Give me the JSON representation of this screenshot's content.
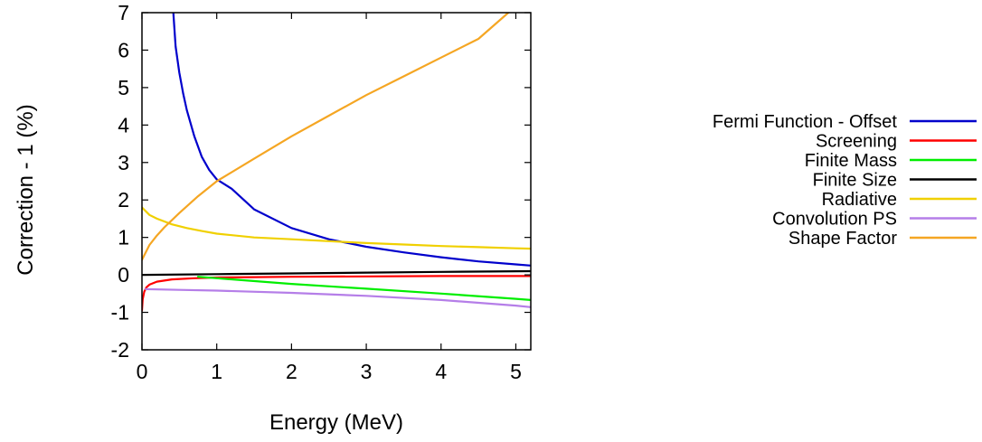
{
  "chart_data": {
    "type": "line",
    "title": "",
    "xlabel": "Energy (MeV)",
    "ylabel": "Correction - 1 (%)",
    "xlim": [
      0,
      5.2
    ],
    "ylim": [
      -2,
      7
    ],
    "xticks": [
      0,
      1,
      2,
      3,
      4,
      5
    ],
    "yticks": [
      -2,
      -1,
      0,
      1,
      2,
      3,
      4,
      5,
      6,
      7
    ],
    "grid": false,
    "legend_position": "right",
    "series": [
      {
        "name": "Fermi Function - Offset",
        "color": "#0000cc",
        "x": [
          0.42,
          0.45,
          0.5,
          0.55,
          0.6,
          0.7,
          0.8,
          0.9,
          1.0,
          1.2,
          1.5,
          2.0,
          2.5,
          3.0,
          3.5,
          4.0,
          4.5,
          5.0,
          5.2
        ],
        "y": [
          7.0,
          6.1,
          5.4,
          4.85,
          4.4,
          3.7,
          3.15,
          2.8,
          2.55,
          2.3,
          1.75,
          1.25,
          0.95,
          0.75,
          0.6,
          0.47,
          0.36,
          0.28,
          0.25
        ]
      },
      {
        "name": "Screening",
        "color": "#ff0000",
        "x": [
          0.0,
          0.01,
          0.03,
          0.06,
          0.1,
          0.2,
          0.4,
          0.7,
          1.0,
          1.5,
          2.0,
          3.0,
          4.0,
          5.0,
          5.2
        ],
        "y": [
          -0.95,
          -0.65,
          -0.45,
          -0.33,
          -0.26,
          -0.18,
          -0.12,
          -0.09,
          -0.07,
          -0.06,
          -0.05,
          -0.04,
          -0.03,
          -0.03,
          -0.03
        ]
      },
      {
        "name": "Finite Mass",
        "color": "#00ee00",
        "x": [
          0.75,
          1.0,
          2.0,
          3.0,
          4.0,
          5.0,
          5.2
        ],
        "y": [
          -0.05,
          -0.09,
          -0.24,
          -0.37,
          -0.5,
          -0.64,
          -0.67
        ]
      },
      {
        "name": "Finite Size",
        "color": "#000000",
        "x": [
          0.0,
          1.0,
          2.0,
          3.0,
          4.0,
          5.2
        ],
        "y": [
          0.0,
          0.02,
          0.04,
          0.06,
          0.08,
          0.1
        ]
      },
      {
        "name": "Radiative",
        "color": "#f0d000",
        "x": [
          0.0,
          0.1,
          0.2,
          0.4,
          0.6,
          0.8,
          1.0,
          1.5,
          2.0,
          2.5,
          3.0,
          3.5,
          4.0,
          4.5,
          5.0,
          5.2
        ],
        "y": [
          1.8,
          1.6,
          1.5,
          1.35,
          1.25,
          1.17,
          1.1,
          1.0,
          0.95,
          0.9,
          0.85,
          0.81,
          0.77,
          0.74,
          0.71,
          0.7
        ]
      },
      {
        "name": "Convolution PS",
        "color": "#b57ee8",
        "x": [
          0.05,
          0.5,
          1.0,
          2.0,
          3.0,
          4.0,
          5.0,
          5.2
        ],
        "y": [
          -0.38,
          -0.4,
          -0.42,
          -0.48,
          -0.56,
          -0.67,
          -0.82,
          -0.86
        ]
      },
      {
        "name": "Shape Factor",
        "color": "#f5a623",
        "x": [
          0.0,
          0.1,
          0.2,
          0.3,
          0.5,
          0.75,
          1.0,
          1.5,
          2.0,
          2.5,
          3.0,
          3.5,
          4.0,
          4.5,
          4.9
        ],
        "y": [
          0.4,
          0.8,
          1.05,
          1.27,
          1.65,
          2.1,
          2.5,
          3.1,
          3.7,
          4.25,
          4.8,
          5.3,
          5.8,
          6.3,
          7.0
        ]
      }
    ]
  }
}
